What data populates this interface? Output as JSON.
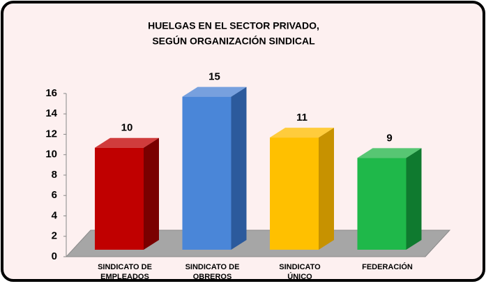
{
  "chart_data": {
    "type": "bar3d",
    "title": [
      "HUELGAS EN EL SECTOR PRIVADO,",
      "SEGÚN ORGANIZACIÓN SINDICAL"
    ],
    "categories": [
      [
        "SINDICATO DE",
        "EMPLEADOS"
      ],
      [
        "SINDICATO DE",
        "OBREROS"
      ],
      [
        "SINDICATO",
        "ÚNICO"
      ],
      [
        "FEDERACIÓN"
      ]
    ],
    "values": [
      10,
      15,
      11,
      9
    ],
    "colors": [
      "#c00000",
      "#4a86d8",
      "#ffc000",
      "#1fb84a"
    ],
    "side_colors": [
      "#7a0000",
      "#2c5a9c",
      "#c79200",
      "#0f7a2f"
    ],
    "ylim": [
      0,
      16
    ],
    "yticks": [
      0,
      2,
      4,
      6,
      8,
      10,
      12,
      14,
      16
    ],
    "grid": false
  }
}
